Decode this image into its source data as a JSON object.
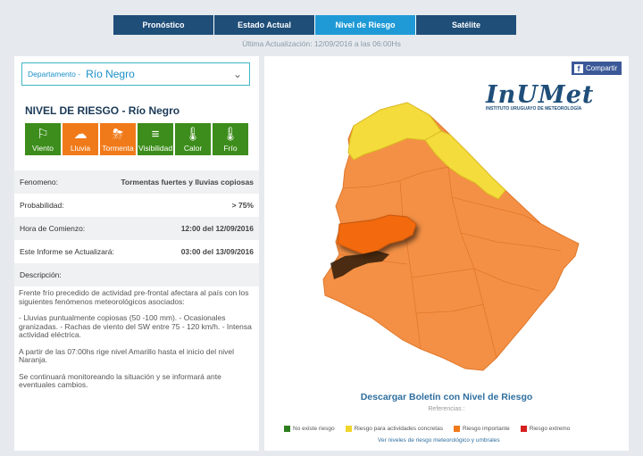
{
  "tabs": [
    {
      "label": "Pronóstico"
    },
    {
      "label": "Estado Actual"
    },
    {
      "label": "Nivel de Riesgo"
    },
    {
      "label": "Satélite"
    }
  ],
  "update_text": "Última Actualización: 12/09/2016 a las 06:00Hs",
  "department": {
    "label": "Departamento -",
    "value": "Río Negro"
  },
  "nivel_title": "NIVEL DE RIESGO - Río Negro",
  "risks": [
    {
      "label": "Viento",
      "icon": "wind-sock-icon",
      "level": "green"
    },
    {
      "label": "Lluvia",
      "icon": "rain-cloud-icon",
      "level": "orange"
    },
    {
      "label": "Tormenta",
      "icon": "storm-cloud-icon",
      "level": "orange"
    },
    {
      "label": "Visibilidad",
      "icon": "fog-icon",
      "level": "green"
    },
    {
      "label": "Calor",
      "icon": "thermometer-hot-icon",
      "level": "green"
    },
    {
      "label": "Frío",
      "icon": "thermometer-cold-icon",
      "level": "green"
    }
  ],
  "info": {
    "fenomeno_label": "Fenomeno:",
    "fenomeno_value": "Tormentas fuertes y lluvias copiosas",
    "probabilidad_label": "Probabilidad:",
    "probabilidad_value": "> 75%",
    "hora_label": "Hora de Comienzo:",
    "hora_value": "12:00 del 12/09/2016",
    "actualizara_label": "Este Informe se Actualizará:",
    "actualizara_value": "03:00 del 13/09/2016",
    "descripcion_label": "Descripción:"
  },
  "description": {
    "p1": "Frente frío precedido de actividad pre-frontal afectara al país con los siguientes fenómenos meteorológicos asociados:",
    "bullets": "- Lluvias puntualmente copiosas (50 -100 mm). - Ocasionales granizadas. - Rachas de viento del SW entre 75 - 120 km/h. - Intensa actividad eléctrica.",
    "p2": "A partir de las 07:00hs rige nivel Amarillo hasta el inicio del nivel Naranja.",
    "p3": "Se continuará monitoreando la situación y se informará ante eventuales cambios."
  },
  "share_label": "Compartir",
  "logo": {
    "name": "InUMet",
    "subtitle": "INSTITUTO URUGUAYO DE METEOROLOGÍA"
  },
  "download_label": "Descargar Boletín con Nivel de Riesgo",
  "refs_label": "Referencias :",
  "legend": [
    {
      "label": "No existe riesgo",
      "color": "#2e7d1e"
    },
    {
      "label": "Riesgo para actividades concretas",
      "color": "#f2d52b"
    },
    {
      "label": "Riesgo importante",
      "color": "#f07a1a"
    },
    {
      "label": "Riesgo extremo",
      "color": "#d62020"
    }
  ],
  "levels_link": "Ver niveles de riesgo meteorológico y umbrales"
}
